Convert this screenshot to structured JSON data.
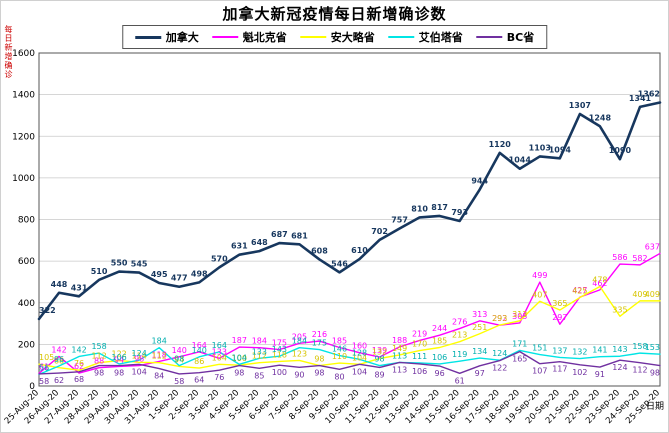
{
  "title": "加拿大新冠疫情每日新增确诊数",
  "chart_data": {
    "type": "line",
    "title": "加拿大新冠疫情每日新增确诊数",
    "ylabel": "每日新增确诊",
    "xlabel": "日期",
    "ylim": [
      0,
      1600
    ],
    "ytick_step": 200,
    "grid": "horizontal",
    "legend_position": "top",
    "categories": [
      "25-Aug-20",
      "26-Aug-20",
      "27-Aug-20",
      "28-Aug-20",
      "29-Aug-20",
      "30-Aug-20",
      "31-Aug-20",
      "1-Sep-20",
      "2-Sep-20",
      "3-Sep-20",
      "4-Sep-20",
      "5-Sep-20",
      "6-Sep-20",
      "7-Sep-20",
      "8-Sep-20",
      "9-Sep-20",
      "10-Sep-20",
      "11-Sep-20",
      "12-Sep-20",
      "13-Sep-20",
      "14-Sep-20",
      "15-Sep-20",
      "16-Sep-20",
      "17-Sep-20",
      "18-Sep-20",
      "19-Sep-20",
      "20-Sep-20",
      "21-Sep-20",
      "22-Sep-20",
      "23-Sep-20",
      "24-Sep-20",
      "25-Sep-20"
    ],
    "series": [
      {
        "name": "加拿大",
        "color": "#17375E",
        "label_color": "#17375E",
        "line_width": 2.6,
        "values": [
          322,
          448,
          431,
          510,
          550,
          545,
          495,
          477,
          498,
          570,
          631,
          648,
          687,
          681,
          608,
          546,
          610,
          702,
          757,
          810,
          817,
          793,
          944,
          1120,
          1044,
          1103,
          1094,
          1307,
          1248,
          1090,
          1341,
          1362
        ]
      },
      {
        "name": "魁北克省",
        "color": "#FF00FF",
        "label_color": "#FF00FF",
        "line_width": 1.4,
        "values": [
          61,
          142,
          62,
          88,
          94,
          98,
          118,
          140,
          164,
          133,
          187,
          184,
          175,
          205,
          216,
          185,
          160,
          139,
          188,
          219,
          244,
          276,
          313,
          292,
          303,
          499,
          297,
          427,
          462,
          586,
          582,
          637
        ]
      },
      {
        "name": "安大略省",
        "color": "#FFFF00",
        "label_color": "#D6C400",
        "line_width": 1.4,
        "values": [
          105,
          88,
          76,
          112,
          122,
          114,
          112,
          94,
          86,
          104,
          100,
          112,
          118,
          123,
          98,
          110,
          104,
          132,
          149,
          170,
          185,
          213,
          251,
          293,
          313,
          407,
          365,
          425,
          478,
          335,
          409,
          409
        ]
      },
      {
        "name": "艾伯塔省",
        "color": "#00E5E5",
        "label_color": "#00AEae",
        "line_width": 1.4,
        "values": [
          56,
          96,
          142,
          158,
          106,
          124,
          184,
          98,
          140,
          164,
          104,
          133,
          143,
          184,
          175,
          146,
          128,
          98,
          113,
          111,
          106,
          119,
          134,
          124,
          171,
          151,
          137,
          132,
          141,
          143,
          158,
          153
        ]
      },
      {
        "name": "BC省",
        "color": "#7030A0",
        "label_color": "#7030A0",
        "line_width": 1.4,
        "values": [
          58,
          62,
          68,
          98,
          98,
          104,
          84,
          58,
          64,
          76,
          98,
          85,
          100,
          90,
          98,
          80,
          104,
          89,
          113,
          106,
          96,
          61,
          97,
          122,
          165,
          107,
          117,
          102,
          91,
          124,
          112,
          98
        ]
      }
    ]
  }
}
